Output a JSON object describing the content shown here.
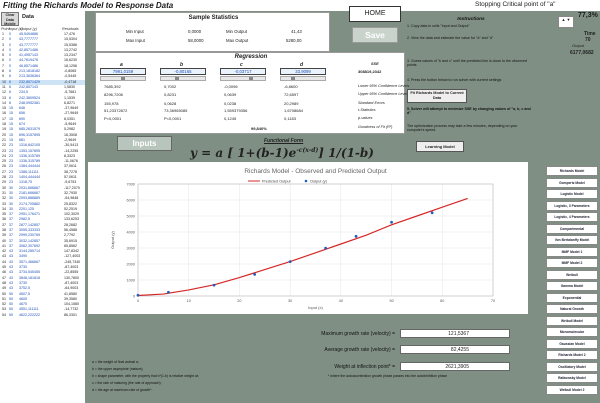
{
  "header": {
    "title": "Fitting the Richards Model to Response Data",
    "critical_point": "Stopping Critical point of \"a\""
  },
  "left_table": {
    "clear_button": "Clear Data Mobile",
    "data_heading": "Data",
    "col_point": "Point",
    "col_input": "Input (x)",
    "col_output": "Output (y)",
    "col_residuals": "Residuals",
    "rows": [
      [
        "1",
        "0",
        "45,5494886",
        "17,476"
      ],
      [
        "2",
        "0",
        "43,7777777",
        "15,5304"
      ],
      [
        "3",
        "0",
        "43,7777777",
        "15,5386"
      ],
      [
        "4",
        "0",
        "42,8571486",
        "13,2742"
      ],
      [
        "5",
        "0",
        "41,4957143",
        "13,2347"
      ],
      [
        "6",
        "0",
        "44,7619476",
        "16,6230"
      ],
      [
        "7",
        "0",
        "46,8571486",
        "18,1256"
      ],
      [
        "8",
        "6",
        "213,1818182",
        "-0,8065"
      ],
      [
        "9",
        "6",
        "213,3636364",
        "-0,5445"
      ],
      [
        "10",
        "6",
        "232,8571429",
        "-0,4718"
      ],
      [
        "11",
        "6",
        "242,857143",
        "1,5830"
      ],
      [
        "12",
        "6",
        "234,5",
        "-5,7681"
      ],
      [
        "13",
        "6",
        "242,3809524",
        "1,1539"
      ],
      [
        "14",
        "6",
        "248,0952381",
        "6,8271"
      ],
      [
        "15",
        "15",
        "646",
        "-37,9649"
      ],
      [
        "16",
        "15",
        "656",
        "-27,9649"
      ],
      [
        "17",
        "15",
        "690",
        "8,0351"
      ],
      [
        "18",
        "15",
        "674",
        "-5,9649"
      ],
      [
        "19",
        "15",
        "685,2631579",
        "5,2982"
      ],
      [
        "20",
        "15",
        "696,3157895",
        "16,3508"
      ],
      [
        "21",
        "15",
        "681",
        "-2,9649"
      ],
      [
        "22",
        "23",
        "1316,842105",
        "-30,5413"
      ],
      [
        "23",
        "23",
        "1353,157895",
        "-14,2255"
      ],
      [
        "24",
        "23",
        "1336,315789",
        "8,3323"
      ],
      [
        "25",
        "23",
        "1336,315789",
        "-11,0676"
      ],
      [
        "26",
        "23",
        "1384,444444",
        "37,0611"
      ],
      [
        "27",
        "23",
        "1386,111111",
        "38,7278"
      ],
      [
        "28",
        "23",
        "1404,444444",
        "57,0611"
      ],
      [
        "29",
        "23",
        "1318,75",
        "-9,6753"
      ],
      [
        "30",
        "30",
        "2031,666667",
        "-117,2070"
      ],
      [
        "31",
        "30",
        "2181,666667",
        "32,7930"
      ],
      [
        "32",
        "30",
        "2093,888889",
        "-54,9848"
      ],
      [
        "33",
        "30",
        "2174,705882",
        "25,8322"
      ],
      [
        "34",
        "30",
        "2201,125",
        "52,2519"
      ],
      [
        "35",
        "37",
        "2951,176471",
        "102,3029"
      ],
      [
        "36",
        "37",
        "2982,5",
        "133,6253"
      ],
      [
        "37",
        "37",
        "2877,142857",
        "28,2682"
      ],
      [
        "38",
        "37",
        "3055,333333",
        "56,4588"
      ],
      [
        "39",
        "37",
        "2999,230769",
        "2,7792"
      ],
      [
        "40",
        "37",
        "3032,142857",
        "35,6915"
      ],
      [
        "41",
        "37",
        "3062,307692",
        "65,8562"
      ],
      [
        "42",
        "43",
        "3144,285714",
        "147,8342"
      ],
      [
        "43",
        "43",
        "3490",
        "-127,4003"
      ],
      [
        "44",
        "43",
        "3571,466667",
        "-245,7340"
      ],
      [
        "45",
        "43",
        "3730",
        "-87,4003"
      ],
      [
        "46",
        "43",
        "3734,545455",
        "-22,8555"
      ],
      [
        "47",
        "43",
        "3848,181818",
        "130,7800"
      ],
      [
        "48",
        "43",
        "3730",
        "-87,4003"
      ],
      [
        "49",
        "43",
        "3752,5",
        "-64,9003"
      ],
      [
        "50",
        "50",
        "4607,5",
        "41,8580"
      ],
      [
        "51",
        "50",
        "4605",
        "39,3580"
      ],
      [
        "52",
        "50",
        "4670",
        "104,1580"
      ],
      [
        "53",
        "50",
        "4551,111111",
        "-14,7732"
      ],
      [
        "54",
        "50",
        "4622,222222",
        "86,3301"
      ]
    ]
  },
  "sample_stats": {
    "title": "Sample Statistics",
    "min_input_lbl": "Min Input",
    "min_input": "0,0000",
    "max_input_lbl": "Max Input",
    "max_input": "58,0000",
    "min_output_lbl": "Min Output",
    "min_output": "41,43",
    "max_output_lbl": "Max Output",
    "max_output": "5280,00"
  },
  "regression": {
    "title": "Regression",
    "params": [
      "a",
      "b",
      "c",
      "d"
    ],
    "values": [
      "7991,0159",
      "-0,80165",
      "-0,03717",
      "33,9099"
    ],
    "sse_lbl": "SSE",
    "sse": "308819,2342",
    "lower95": [
      "7685,392",
      "0,7002",
      "-0,0096",
      "-6,8600"
    ],
    "upper95": [
      "8296,7206",
      "0,8231",
      "0,0639",
      "72,6597"
    ],
    "stderr": [
      "155,978",
      "0,0628",
      "0,0238",
      "20,2989"
    ],
    "tstat": [
      "51,23372872",
      "73,36965085",
      "1,559379356",
      "1,6708684"
    ],
    "pvals": [
      "P<0,0001",
      "P<0,0001",
      "0,1245",
      "0,1183"
    ],
    "goodness": "99,840%",
    "labels": {
      "lower": "Lower 95% Confidence Levels",
      "upper": "Upper 95% Confidence Levels",
      "stderr": "Standard Errors",
      "tstat": "t-Statistics",
      "pvals": "p-values",
      "goodness": "Goodness of Fit (R²)"
    }
  },
  "buttons": {
    "home": "HOME",
    "save": "Save",
    "inputs": "Inputs",
    "fit": "Fit Richards Model to Current Data",
    "learning": "Learning Model"
  },
  "instructions": {
    "title": "Instructions",
    "step1": "1. Copy data in cells \"Input and Output\"",
    "step2": "2. View the data and estimate the value for \"a\" and \"d\"",
    "step3": "3. Guess values of \"b and c\" until the predicted line is close to the observed points",
    "step4": "4. Press the button below to run solver with current settings",
    "step5": "5. Solver will attempt to minimize SSE by changing values of \"a, b, c and d\"",
    "note": "The optimization process may take a few minutes, depending on your computer's speed."
  },
  "right_info": {
    "percent": "77,3%",
    "spinner": "▲ ▼",
    "time_lbl": "Time",
    "time_val": "70",
    "weight_lbl": "Output",
    "weight_val": "6177,0682"
  },
  "functional_form": {
    "title": "Functional Form",
    "equation": "y = a [ 1+(b-1)e",
    "exponent": "-c(x-d)",
    "power": "] 1/(1-b)"
  },
  "chart_data": {
    "type": "scatter",
    "title": "Richards Model - Observed and Predicted Output",
    "xlabel": "Input (x)",
    "ylabel": "Output (y)",
    "xlim": [
      0,
      70
    ],
    "ylim": [
      0,
      7000
    ],
    "xticks": [
      0,
      10,
      20,
      30,
      40,
      50,
      60,
      70
    ],
    "yticks": [
      0,
      1000,
      2000,
      3000,
      4000,
      5000,
      6000,
      7000
    ],
    "series": [
      {
        "name": "Predicted Output",
        "type": "line",
        "color": "#d62728",
        "x": [
          0,
          5,
          10,
          15,
          20,
          25,
          30,
          35,
          40,
          45,
          50,
          55,
          60,
          65
        ],
        "y": [
          30,
          120,
          380,
          700,
          1150,
          1650,
          2150,
          2700,
          3250,
          3800,
          4450,
          5000,
          5550,
          6100
        ]
      },
      {
        "name": "Output (y)",
        "type": "scatter",
        "color": "#1f5fbf",
        "x": [
          0,
          6,
          15,
          23,
          30,
          37,
          43,
          50,
          58
        ],
        "y": [
          44,
          235,
          680,
          1350,
          2150,
          2990,
          3730,
          4610,
          5200
        ]
      }
    ],
    "legend": "top"
  },
  "models": [
    "Richards Model",
    "Gompertz Model",
    "Logistic Model",
    "Logistic, 3 Parameters",
    "Logistic, 4 Parameters",
    "Compartmental",
    "Von Bertalanffy Model",
    "MMF Model 1",
    "MMF Model 2",
    "Weibull",
    "Gamma Model",
    "Exponential",
    "Natural Growth",
    "Weibull Model",
    "Monomolecular",
    "Gaussian Model",
    "Richards Model 2",
    "Oscillatory Model",
    "Ratkowsky Model",
    "Weibull Model 2"
  ],
  "bottom_stats": {
    "max_lbl": "Maximum growth rate (velocity) =",
    "max_val": "121,5367",
    "avg_lbl": "Average growth rate (velocity) =",
    "avg_val": "82,4255",
    "wip_lbl": "Weight at inflection point* =",
    "wip_val": "2621,3905",
    "footnote": "* where the autoacceleration growth phase passes into the autoinhibition phase"
  },
  "notes": [
    "a = the weight of final animal α;",
    "b = the upper asymptote (mature);",
    "b = shape parameter, with the property that b*(1-b) is relative weight at;",
    "c = the rate of maturing (the rate of approach);",
    "d = the age at maximum rate of growth*."
  ]
}
